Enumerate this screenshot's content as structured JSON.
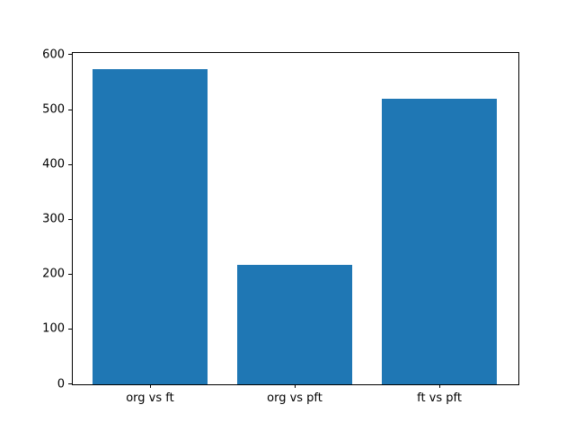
{
  "figure": {
    "background": "#ffffff",
    "axis_color": "#000000"
  },
  "chart_data": {
    "type": "bar",
    "categories": [
      "org vs ft",
      "org vs pft",
      "ft vs pft"
    ],
    "values": [
      575,
      217,
      521
    ],
    "title": "",
    "xlabel": "",
    "ylabel": "",
    "ylim": [
      0,
      604
    ],
    "yticks": [
      0,
      100,
      200,
      300,
      400,
      500,
      600
    ],
    "bar_color": "#1f77b4",
    "bar_width_fraction": 0.8,
    "grid": false,
    "legend": null
  }
}
